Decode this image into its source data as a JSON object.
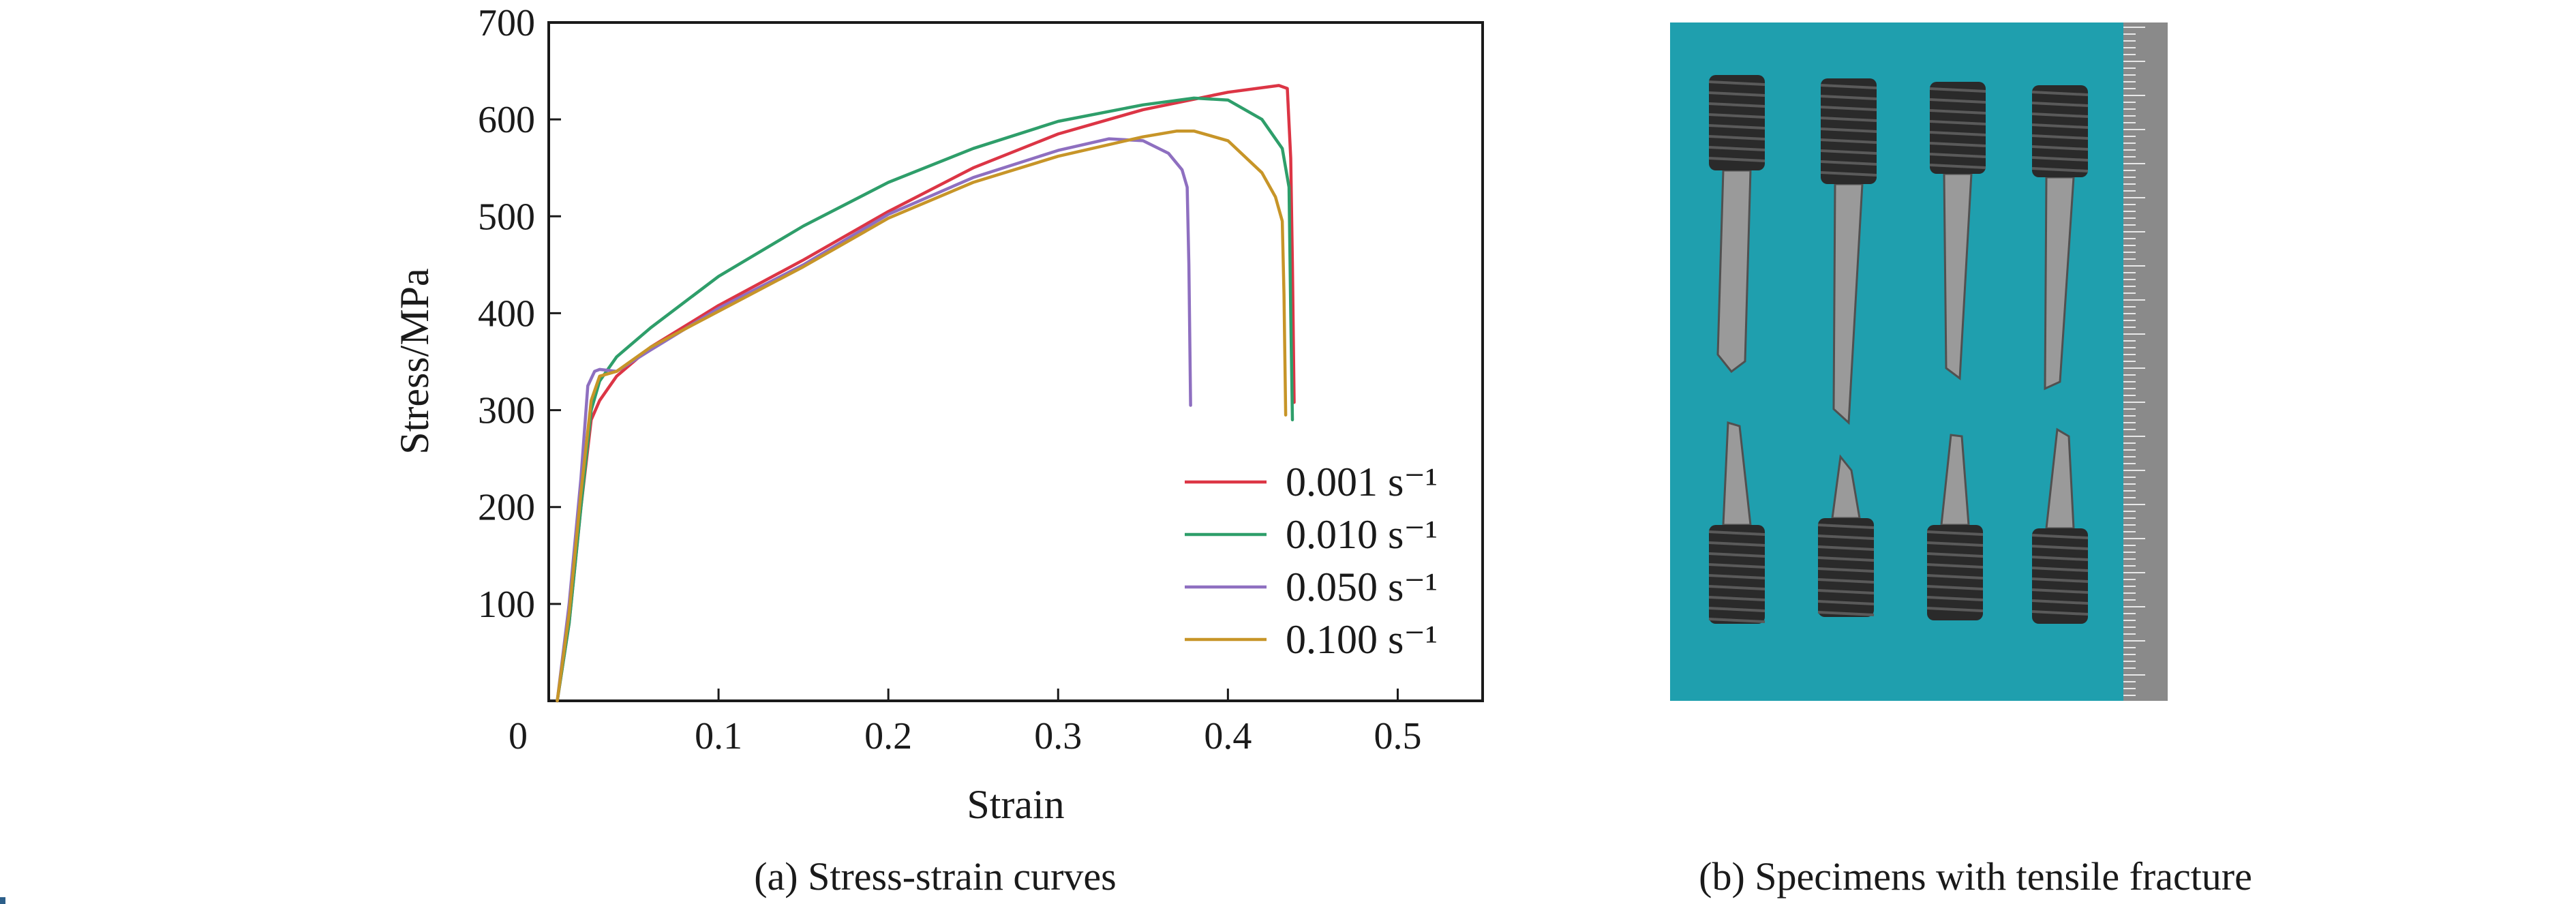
{
  "figure": {
    "caption_a": "(a) Stress-strain curves",
    "caption_b": "(b) Specimens with tensile fracture"
  },
  "chart_data": {
    "type": "line",
    "title": "",
    "xlabel": "Strain",
    "ylabel": "Stress/MPa",
    "xlim": [
      0,
      0.55
    ],
    "ylim": [
      0,
      700
    ],
    "x_ticks": [
      0,
      0.1,
      0.2,
      0.3,
      0.4,
      0.5
    ],
    "x_tick_labels": [
      "0",
      "0.1",
      "0.2",
      "0.3",
      "0.4",
      "0.5"
    ],
    "y_ticks": [
      100,
      200,
      300,
      400,
      500,
      600,
      700
    ],
    "y_tick_labels": [
      "100",
      "200",
      "300",
      "400",
      "500",
      "600",
      "700"
    ],
    "grid": false,
    "legend_position": "lower-right",
    "series": [
      {
        "name": "0.001 s⁻¹",
        "color": "#dc3545",
        "points": [
          [
            0.005,
            0
          ],
          [
            0.012,
            80
          ],
          [
            0.019,
            200
          ],
          [
            0.025,
            290
          ],
          [
            0.03,
            310
          ],
          [
            0.04,
            335
          ],
          [
            0.06,
            365
          ],
          [
            0.1,
            408
          ],
          [
            0.15,
            455
          ],
          [
            0.2,
            505
          ],
          [
            0.25,
            550
          ],
          [
            0.3,
            585
          ],
          [
            0.35,
            610
          ],
          [
            0.4,
            628
          ],
          [
            0.43,
            635
          ],
          [
            0.435,
            632
          ],
          [
            0.437,
            560
          ],
          [
            0.438,
            450
          ],
          [
            0.439,
            308
          ]
        ]
      },
      {
        "name": "0.010 s⁻¹",
        "color": "#2e9e6a",
        "points": [
          [
            0.005,
            0
          ],
          [
            0.012,
            80
          ],
          [
            0.019,
            200
          ],
          [
            0.025,
            300
          ],
          [
            0.03,
            330
          ],
          [
            0.04,
            355
          ],
          [
            0.06,
            385
          ],
          [
            0.1,
            438
          ],
          [
            0.15,
            490
          ],
          [
            0.2,
            535
          ],
          [
            0.25,
            570
          ],
          [
            0.3,
            598
          ],
          [
            0.35,
            615
          ],
          [
            0.38,
            622
          ],
          [
            0.4,
            620
          ],
          [
            0.42,
            600
          ],
          [
            0.432,
            570
          ],
          [
            0.436,
            530
          ],
          [
            0.437,
            400
          ],
          [
            0.438,
            290
          ]
        ]
      },
      {
        "name": "0.050 s⁻¹",
        "color": "#8e6fc0",
        "points": [
          [
            0.005,
            0
          ],
          [
            0.012,
            100
          ],
          [
            0.019,
            230
          ],
          [
            0.023,
            325
          ],
          [
            0.027,
            340
          ],
          [
            0.03,
            342
          ],
          [
            0.04,
            340
          ],
          [
            0.06,
            362
          ],
          [
            0.1,
            405
          ],
          [
            0.15,
            450
          ],
          [
            0.2,
            502
          ],
          [
            0.25,
            540
          ],
          [
            0.3,
            568
          ],
          [
            0.33,
            580
          ],
          [
            0.35,
            578
          ],
          [
            0.365,
            565
          ],
          [
            0.373,
            548
          ],
          [
            0.376,
            530
          ],
          [
            0.377,
            450
          ],
          [
            0.378,
            305
          ]
        ]
      },
      {
        "name": "0.100 s⁻¹",
        "color": "#c79528",
        "points": [
          [
            0.005,
            0
          ],
          [
            0.012,
            90
          ],
          [
            0.019,
            215
          ],
          [
            0.025,
            310
          ],
          [
            0.03,
            335
          ],
          [
            0.04,
            340
          ],
          [
            0.06,
            365
          ],
          [
            0.1,
            402
          ],
          [
            0.15,
            448
          ],
          [
            0.2,
            498
          ],
          [
            0.25,
            535
          ],
          [
            0.3,
            562
          ],
          [
            0.35,
            582
          ],
          [
            0.37,
            588
          ],
          [
            0.38,
            588
          ],
          [
            0.4,
            578
          ],
          [
            0.42,
            545
          ],
          [
            0.428,
            520
          ],
          [
            0.432,
            495
          ],
          [
            0.433,
            420
          ],
          [
            0.434,
            295
          ]
        ]
      }
    ]
  },
  "photo": {
    "background_color": "#1f9fae",
    "specimen_color": "#2a2a2a",
    "ruler_color": "#8a8a8a"
  }
}
